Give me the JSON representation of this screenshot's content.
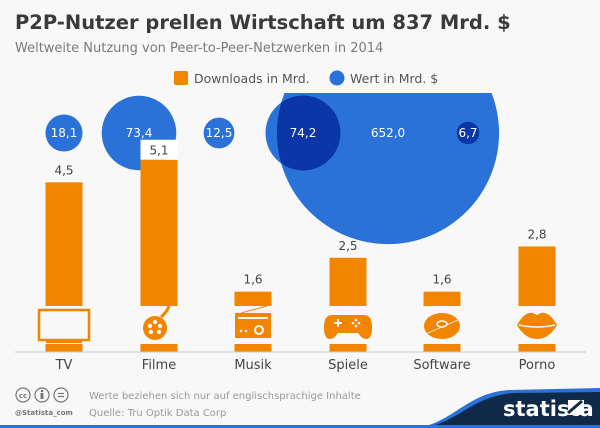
{
  "colors": {
    "bar": "#f28500",
    "bubble": "#2a72d8",
    "bubble_overlap": "#0b36a8",
    "logo_bg": "#0e2a48",
    "logo_accent": "#2a72d8"
  },
  "chart_data": {
    "type": "bar",
    "title": "P2P-Nutzer prellen Wirtschaft um 837 Mrd. $",
    "subtitle": "Weltweite Nutzung von Peer-to-Peer-Netzwerken in 2014",
    "categories": [
      "TV",
      "Filme",
      "Musik",
      "Spiele",
      "Software",
      "Porno"
    ],
    "series": [
      {
        "name": "Downloads in Mrd.",
        "kind": "bar",
        "values": [
          4.5,
          5.1,
          1.6,
          2.5,
          1.6,
          2.8
        ],
        "labels": [
          "4,5",
          "5,1",
          "1,6",
          "2,5",
          "1,6",
          "2,8"
        ]
      },
      {
        "name": "Wert in Mrd. $",
        "kind": "bubble",
        "values": [
          18.1,
          73.4,
          12.5,
          74.2,
          652.0,
          6.7
        ],
        "labels": [
          "18,1",
          "73,4",
          "12,5",
          "74,2",
          "652,0",
          "6,7"
        ]
      }
    ],
    "icons": [
      "tv-icon",
      "film-reel-icon",
      "radio-icon",
      "gamepad-icon",
      "disc-icon",
      "lips-icon"
    ],
    "legend_position": "top-center",
    "grid": false
  },
  "footer": {
    "note": "Werte beziehen sich nur auf englischsprachige Inhalte",
    "source": "Quelle: Tru Optik Data Corp",
    "handle": "@Statista_com",
    "logo": "statista"
  }
}
